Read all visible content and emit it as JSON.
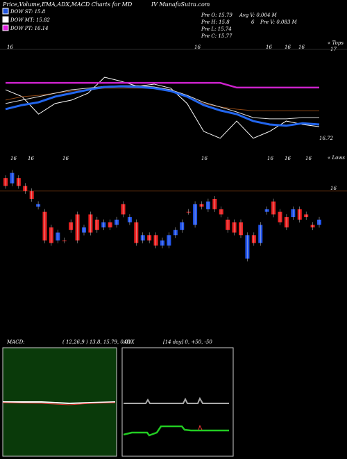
{
  "header": {
    "title": "Price,Volume,EMA,ADX,MACD Charts for MD",
    "site": "IV MunafaSutra.com"
  },
  "legend": [
    {
      "label": "DOW ST: 15.8",
      "color": "#2255dd"
    },
    {
      "label": "DOW MT: 15.82",
      "color": "#ffffff"
    },
    {
      "label": "DOW PT: 16.14",
      "color": "#dd22dd"
    }
  ],
  "info": {
    "open": "Pre  O: 15.79",
    "high": "Pre  H: 15.8",
    "low": "Pre  L: 15.74",
    "close": "Pre  C: 15.77",
    "avg_volume": "Avg V: 0.004  M",
    "count": "6",
    "volume": "Pre  V: 0.083 M"
  },
  "date_labels_top": [
    "16",
    "16",
    "16",
    "16",
    "16"
  ],
  "date_labels_bottom": [
    "16",
    "16",
    "16",
    "16",
    "16",
    "16",
    "16"
  ],
  "chart_data": [
    {
      "type": "line",
      "tag": "« Tops",
      "ylim": [
        16.68,
        17.02
      ],
      "yticks": [
        17,
        16.72
      ],
      "x": [
        0,
        1,
        2,
        3,
        4,
        5,
        6,
        7,
        8,
        9,
        10,
        11,
        12,
        13,
        14,
        15,
        16,
        17,
        18,
        19
      ],
      "series": [
        {
          "name": "Price",
          "color": "#ffffff",
          "values": [
            16.871,
            16.849,
            16.793,
            16.827,
            16.838,
            16.86,
            16.911,
            16.898,
            16.882,
            16.889,
            16.876,
            16.827,
            16.738,
            16.716,
            16.771,
            16.716,
            16.738,
            16.771,
            16.76,
            16.753
          ]
        },
        {
          "name": "Long EMA",
          "color": "#8b4513",
          "values": [
            16.838,
            16.849,
            16.853,
            16.86,
            16.867,
            16.871,
            16.876,
            16.876,
            16.876,
            16.876,
            16.871,
            16.849,
            16.827,
            16.816,
            16.809,
            16.804,
            16.804,
            16.804,
            16.804,
            16.804
          ]
        },
        {
          "name": "Mid EMA",
          "color": "#dddddd",
          "values": [
            16.827,
            16.838,
            16.849,
            16.86,
            16.871,
            16.876,
            16.882,
            16.884,
            16.884,
            16.88,
            16.871,
            16.853,
            16.831,
            16.816,
            16.8,
            16.782,
            16.778,
            16.778,
            16.782,
            16.782
          ]
        },
        {
          "name": "Short EMA",
          "color": "#2266ee",
          "values": [
            16.809,
            16.822,
            16.831,
            16.849,
            16.86,
            16.871,
            16.88,
            16.882,
            16.88,
            16.876,
            16.867,
            16.849,
            16.822,
            16.805,
            16.793,
            16.771,
            16.76,
            16.756,
            16.764,
            16.76
          ]
        },
        {
          "name": "Trend",
          "color": "#cc22cc",
          "values": [
            16.893,
            16.893,
            16.893,
            16.893,
            16.893,
            16.893,
            16.893,
            16.893,
            16.893,
            16.893,
            16.893,
            16.893,
            16.893,
            16.893,
            16.878,
            16.878,
            16.878,
            16.878,
            16.878,
            16.878
          ]
        }
      ]
    },
    {
      "type": "candlestick",
      "tag": "« Lows",
      "ylim": [
        15.45,
        16.12
      ],
      "yticks": [
        16
      ],
      "up_color": "#2255ee",
      "down_color": "#ee2222",
      "open": [
        16.05,
        16.03,
        16.05,
        16.02,
        16.0,
        15.94,
        15.92,
        15.86,
        15.81,
        15.81,
        15.88,
        15.91,
        15.84,
        15.91,
        15.89,
        15.86,
        15.88,
        15.87,
        15.95,
        15.88,
        15.88,
        15.81,
        15.83,
        15.83,
        15.79,
        15.79,
        15.83,
        15.85,
        15.92,
        15.87,
        15.95,
        15.93,
        15.97,
        15.93,
        15.89,
        15.88,
        15.88,
        15.74,
        15.83,
        15.8,
        15.92,
        15.96,
        15.92,
        15.9,
        15.9,
        15.93,
        15.91,
        15.87,
        15.87
      ],
      "close": [
        16.02,
        16.07,
        16.02,
        16.0,
        15.97,
        15.95,
        15.81,
        15.8,
        15.84,
        15.81,
        15.85,
        15.81,
        15.86,
        15.84,
        15.85,
        15.88,
        15.86,
        15.89,
        15.91,
        15.9,
        15.8,
        15.83,
        15.81,
        15.79,
        15.81,
        15.83,
        15.85,
        15.88,
        15.92,
        15.95,
        15.94,
        15.96,
        15.93,
        15.91,
        15.85,
        15.84,
        15.83,
        15.83,
        15.8,
        15.87,
        15.93,
        15.91,
        15.88,
        15.86,
        15.93,
        15.89,
        15.9,
        15.86,
        15.89
      ]
    }
  ]
}
